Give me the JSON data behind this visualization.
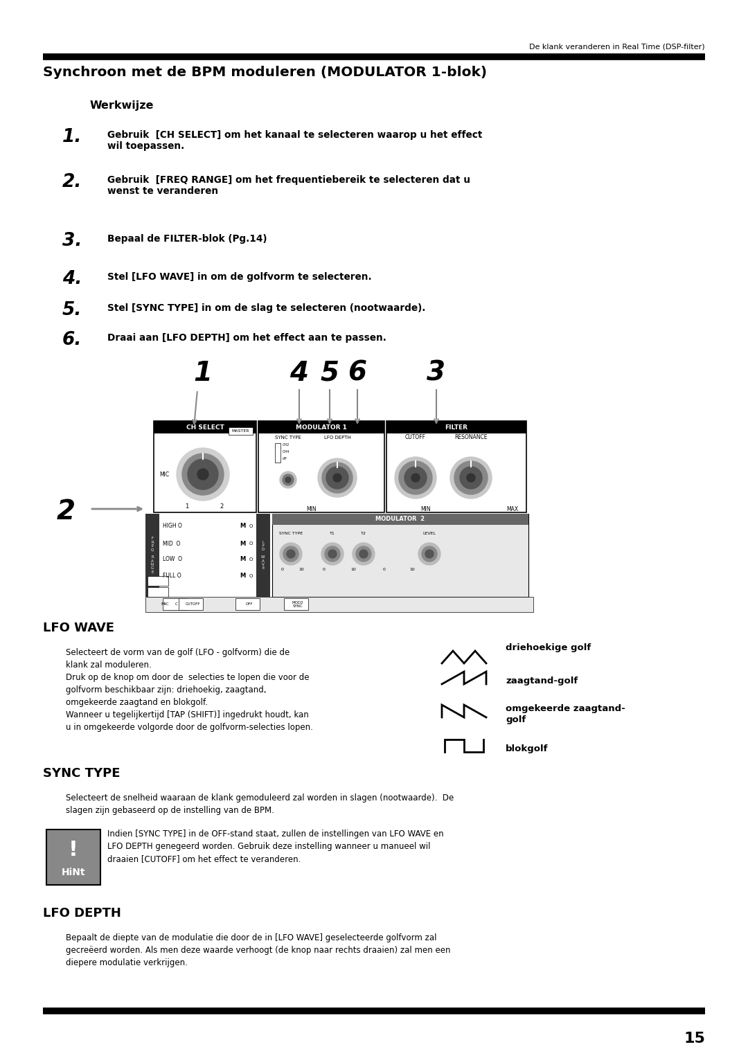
{
  "bg_color": "#ffffff",
  "page_width": 10.8,
  "page_height": 15.28,
  "header_text": "De klank veranderen in Real Time (DSP-filter)",
  "title": "Synchroon met de BPM moduleren (MODULATOR 1-blok)",
  "subtitle": "Werkwijze",
  "steps": [
    {
      "num": "1.",
      "text": "Gebruik  [CH SELECT] om het kanaal te selecteren waarop u het effect\nwil toepassen."
    },
    {
      "num": "2.",
      "text": "Gebruik  [FREQ RANGE] om het frequentiebereik te selecteren dat u\nwenst te veranderen"
    },
    {
      "num": "3.",
      "text": "Bepaal de FILTER-blok (Pg.14)"
    },
    {
      "num": "4.",
      "text": "Stel [LFO WAVE] in om de golfvorm te selecteren."
    },
    {
      "num": "5.",
      "text": "Stel [SYNC TYPE] in om de slag te selecteren (nootwaarde)."
    },
    {
      "num": "6.",
      "text": "Draai aan [LFO DEPTH] om het effect aan te passen."
    }
  ],
  "lfo_wave_title": "LFO WAVE",
  "lfo_wave_body": "Selecteert de vorm van de golf (LFO - golfvorm) die de\nklank zal moduleren.\nDruk op de knop om door de  selecties te lopen die voor de\ngolfvorm beschikbaar zijn: driehoekig, zaagtand,\nomgekeerde zaagtand en blokgolf.\nWanneer u tegelijkertijd [TAP (SHIFT)] ingedrukt houdt, kan\nu in omgekeerde volgorde door de golfvorm-selecties lopen.",
  "wave_labels": [
    "driehoekige golf",
    "zaagtand-golf",
    "omgekeerde zaagtand-\ngolf",
    "blokgolf"
  ],
  "sync_type_title": "SYNC TYPE",
  "sync_type_body": "Selecteert de snelheid waaraan de klank gemoduleerd zal worden in slagen (nootwaarde).  De\nslagen zijn gebaseerd op de instelling van de BPM.",
  "hint_text": "Indien [SYNC TYPE] in de OFF-stand staat, zullen de instellingen van LFO WAVE en\nLFO DEPTH genegeerd worden. Gebruik deze instelling wanneer u manueel wil\ndraaien [CUTOFF] om het effect te veranderen.",
  "lfo_depth_title": "LFO DEPTH",
  "lfo_depth_body": "Bepaalt de diepte van de modulatie die door de in [LFO WAVE] geselecteerde golfvorm zal\ngecreëerd worden. Als men deze waarde verhoogt (de knop naar rechts draaien) zal men een\ndiepere modulatie verkrijgen.",
  "page_number": "15"
}
